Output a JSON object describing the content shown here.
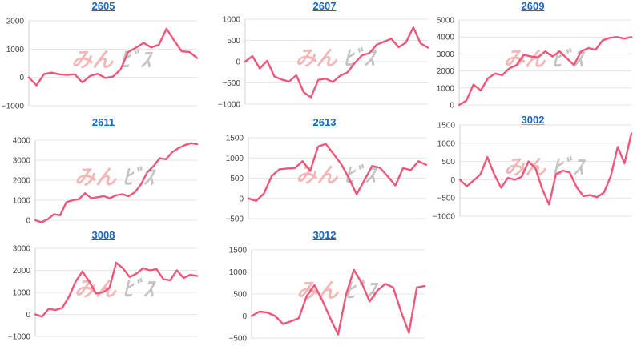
{
  "colors": {
    "line": "#f0567a",
    "title": "#1a66c2",
    "watermark_left": "#f2b7b7",
    "watermark_right": "#c4c4c4"
  },
  "watermark": {
    "text_left": "みん",
    "text_right": "ﾋﾞｽ",
    "kind": "logo"
  },
  "chart_data": [
    {
      "type": "line",
      "title": "2605",
      "ylim": [
        -1000,
        2000
      ],
      "y_ticks": [
        "2000",
        "1000",
        "0",
        "−1000"
      ],
      "series": [
        {
          "values": [
            0,
            -280,
            120,
            170,
            110,
            90,
            110,
            -180,
            50,
            130,
            -20,
            30,
            280,
            900,
            1050,
            1220,
            1060,
            1150,
            1720,
            1300,
            920,
            900,
            680
          ]
        }
      ]
    },
    {
      "type": "line",
      "title": "2607",
      "ylim": [
        -1000,
        1000
      ],
      "y_ticks": [
        "1000",
        "500",
        "0",
        "−500",
        "−1000"
      ],
      "series": [
        {
          "values": [
            0,
            130,
            -160,
            20,
            -350,
            -420,
            -470,
            -320,
            -720,
            -840,
            -430,
            -400,
            -480,
            -330,
            -250,
            -30,
            150,
            200,
            400,
            470,
            540,
            340,
            450,
            810,
            430,
            330
          ]
        }
      ]
    },
    {
      "type": "line",
      "title": "2609",
      "ylim": [
        0,
        5000
      ],
      "y_ticks": [
        "5000",
        "4000",
        "3000",
        "2000",
        "1000",
        "0"
      ],
      "series": [
        {
          "values": [
            0,
            250,
            1200,
            850,
            1550,
            1850,
            1750,
            2150,
            2350,
            2950,
            2850,
            2800,
            3150,
            2850,
            3150,
            2750,
            2350,
            3150,
            3350,
            3250,
            3800,
            3950,
            4000,
            3900,
            4000
          ]
        }
      ]
    },
    {
      "type": "line",
      "title": "2611",
      "ylim": [
        0,
        4000
      ],
      "y_ticks": [
        "4000",
        "3000",
        "2000",
        "1000",
        "0"
      ],
      "series": [
        {
          "values": [
            0,
            -100,
            50,
            300,
            250,
            900,
            1000,
            1050,
            1350,
            1100,
            1150,
            1200,
            1100,
            1250,
            1300,
            1200,
            1400,
            1800,
            2400,
            2700,
            3100,
            3050,
            3400,
            3600,
            3750,
            3850,
            3800
          ]
        }
      ]
    },
    {
      "type": "line",
      "title": "2613",
      "ylim": [
        -500,
        1500
      ],
      "y_ticks": [
        "1500",
        "1000",
        "500",
        "0",
        "−500"
      ],
      "series": [
        {
          "values": [
            0,
            -60,
            120,
            550,
            720,
            740,
            750,
            920,
            680,
            1280,
            1350,
            1100,
            850,
            500,
            100,
            450,
            800,
            760,
            550,
            320,
            750,
            700,
            920,
            830
          ]
        }
      ]
    },
    {
      "type": "line",
      "title": "3002",
      "ylim": [
        -1000,
        1500
      ],
      "y_ticks": [
        "1500",
        "1000",
        "500",
        "0",
        "−500",
        "−1000"
      ],
      "series": [
        {
          "values": [
            0,
            -180,
            -20,
            150,
            620,
            150,
            -220,
            50,
            0,
            80,
            500,
            320,
            -250,
            -680,
            150,
            250,
            200,
            -200,
            -450,
            -420,
            -480,
            -350,
            100,
            900,
            450,
            1270
          ]
        }
      ]
    },
    {
      "type": "line",
      "title": "3008",
      "ylim": [
        -1000,
        3000
      ],
      "y_ticks": [
        "3000",
        "2000",
        "1000",
        "0",
        "−1000"
      ],
      "series": [
        {
          "values": [
            0,
            -100,
            250,
            200,
            300,
            800,
            1500,
            1950,
            1500,
            950,
            1000,
            1200,
            2350,
            2100,
            1700,
            1850,
            2100,
            2000,
            2050,
            1600,
            1550,
            2000,
            1650,
            1800,
            1750
          ]
        }
      ]
    },
    {
      "type": "line",
      "title": "3012",
      "ylim": [
        -500,
        1500
      ],
      "y_ticks": [
        "1500",
        "1000",
        "500",
        "0",
        "−500"
      ],
      "series": [
        {
          "values": [
            0,
            100,
            80,
            0,
            -180,
            -120,
            -50,
            450,
            700,
            350,
            -50,
            -420,
            480,
            1050,
            750,
            330,
            580,
            730,
            650,
            100,
            -380,
            650,
            680
          ]
        }
      ]
    }
  ]
}
